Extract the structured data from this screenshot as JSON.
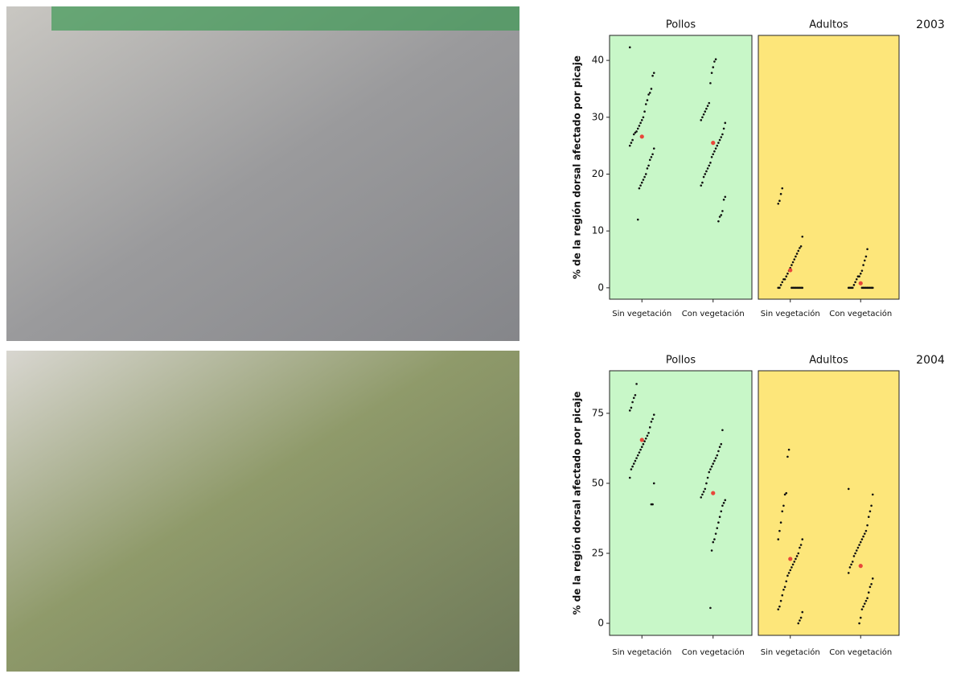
{
  "chart_data": [
    {
      "type": "strip",
      "year": "2003",
      "y_label": "% de la región dorsal afectado por picaje",
      "ylim": [
        -2,
        44.4
      ],
      "yticks": [
        0,
        10,
        20,
        30,
        40
      ],
      "grid": false,
      "point_color": "#111111",
      "mean_color": "#e8473a",
      "panels": [
        {
          "title": "Pollos",
          "background": "#c8f7c8",
          "categories": [
            "Sin vegetación",
            "Con vegetación"
          ],
          "values": [
            [
              42.3,
              37.8,
              37.3,
              35,
              34.3,
              34,
              33,
              32.3,
              31,
              30,
              29.5,
              29,
              28.5,
              28,
              27.5,
              27.3,
              27,
              26,
              25.5,
              25,
              24.5,
              23.5,
              23,
              22.5,
              21.5,
              21,
              20,
              19.5,
              19,
              18.5,
              18,
              17.5,
              12
            ],
            [
              40.2,
              39.8,
              38.8,
              37.8,
              36,
              32.5,
              32,
              31.5,
              31,
              30.5,
              30,
              29.5,
              29,
              28,
              27,
              26.5,
              26,
              25.5,
              25,
              24.5,
              24,
              23.5,
              23,
              22,
              21.5,
              21,
              20.5,
              20,
              19.5,
              18.5,
              18,
              16,
              15.5,
              13.5,
              12.8,
              12.5,
              11.7
            ]
          ],
          "means": [
            26.6,
            25.5
          ]
        },
        {
          "title": "Adultos",
          "background": "#fde67a",
          "categories": [
            "Sin vegetación",
            "Con vegetación"
          ],
          "values": [
            [
              17.5,
              16.5,
              15.3,
              14.8,
              9,
              7.3,
              7,
              6.5,
              6,
              5.5,
              5,
              4.5,
              4,
              3.5,
              3,
              2.5,
              2,
              1.5,
              1.5,
              1,
              0.5,
              0,
              0,
              0,
              0,
              0,
              0,
              0,
              0,
              0,
              0,
              0
            ],
            [
              6.8,
              5.5,
              4.8,
              4,
              3,
              2.5,
              2,
              2,
              1.5,
              1,
              0.5,
              0,
              0,
              0,
              0,
              0,
              0,
              0,
              0,
              0,
              0,
              0,
              0,
              0
            ]
          ],
          "means": [
            3.1,
            0.8
          ]
        }
      ]
    },
    {
      "type": "strip",
      "year": "2004",
      "y_label": "% de la región dorsal afectado por picaje",
      "ylim": [
        -4.3,
        90.2
      ],
      "yticks": [
        0,
        25,
        50,
        75
      ],
      "grid": false,
      "point_color": "#111111",
      "mean_color": "#e8473a",
      "panels": [
        {
          "title": "Pollos",
          "background": "#c8f7c8",
          "categories": [
            "Sin vegetación",
            "Con vegetación"
          ],
          "values": [
            [
              85.5,
              81.5,
              80.5,
              79,
              77,
              76,
              74.5,
              73,
              72,
              70,
              68,
              67,
              66,
              65,
              64,
              63,
              62,
              61,
              60,
              59,
              58,
              57,
              56,
              55,
              52,
              50,
              42.5,
              42.5
            ],
            [
              69,
              64,
              63,
              61.5,
              60,
              59,
              58,
              57,
              56,
              55,
              54,
              52,
              50,
              48,
              47,
              46,
              45,
              44,
              43,
              42,
              40,
              38,
              36,
              34,
              32,
              30,
              29,
              26,
              5.5
            ]
          ],
          "means": [
            65.5,
            46.5
          ]
        },
        {
          "title": "Adultos",
          "background": "#fde67a",
          "categories": [
            "Sin vegetación",
            "Con vegetación"
          ],
          "values": [
            [
              62,
              59.5,
              46.5,
              46,
              42,
              40,
              36,
              33,
              30,
              30,
              28,
              27,
              25,
              24,
              23,
              22,
              21,
              20,
              19,
              18,
              17,
              15,
              13,
              12,
              10,
              8,
              6,
              5,
              4,
              2,
              1,
              0
            ],
            [
              48,
              46,
              42,
              40,
              38,
              35,
              33,
              32,
              31,
              30,
              29,
              28,
              27,
              26,
              25,
              24,
              22,
              21,
              20,
              18,
              16,
              14,
              13,
              11,
              9,
              8,
              7,
              6,
              5,
              2,
              0
            ]
          ],
          "means": [
            23,
            20.5
          ]
        }
      ]
    }
  ]
}
